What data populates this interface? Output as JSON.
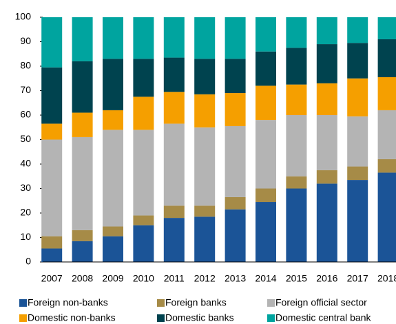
{
  "chart_data": {
    "type": "stacked_bar",
    "categories": [
      "2007",
      "2008",
      "2009",
      "2010",
      "2011",
      "2012",
      "2013",
      "2014",
      "2015",
      "2016",
      "2017",
      "2018"
    ],
    "series": [
      {
        "name": "Foreign non-banks",
        "color": "#1b5497",
        "values": [
          5.5,
          8.5,
          10.5,
          15,
          18,
          18.5,
          21.5,
          24.5,
          30,
          32,
          33.5,
          36.5
        ]
      },
      {
        "name": "Foreign banks",
        "color": "#a68b47",
        "values": [
          5,
          4.5,
          4,
          4,
          5,
          4.5,
          5,
          5.5,
          5,
          5.5,
          5.5,
          5.5
        ]
      },
      {
        "name": "Foreign official sector",
        "color": "#b4b4b4",
        "values": [
          39.5,
          38,
          39.5,
          35,
          33.5,
          32,
          29,
          28,
          25,
          22.5,
          20.5,
          20
        ]
      },
      {
        "name": "Domestic non-banks",
        "color": "#f59f00",
        "values": [
          6.5,
          10,
          8,
          13.5,
          13,
          13.5,
          13.5,
          14,
          12.5,
          13,
          15.5,
          13.5
        ]
      },
      {
        "name": "Domestic banks",
        "color": "#00434f",
        "values": [
          23,
          21,
          21,
          15.5,
          14,
          14.5,
          14,
          14,
          15,
          16,
          14.5,
          15.5
        ]
      },
      {
        "name": "Domestic central bank",
        "color": "#00a49f",
        "values": [
          20.5,
          18,
          17,
          17,
          16.5,
          17,
          17,
          14,
          12.5,
          11,
          10.5,
          9
        ]
      }
    ],
    "ylim": [
      0,
      100
    ],
    "yticks": [
      0,
      10,
      20,
      30,
      40,
      50,
      60,
      70,
      80,
      90,
      100
    ],
    "grid": false,
    "legend": "bottom"
  }
}
